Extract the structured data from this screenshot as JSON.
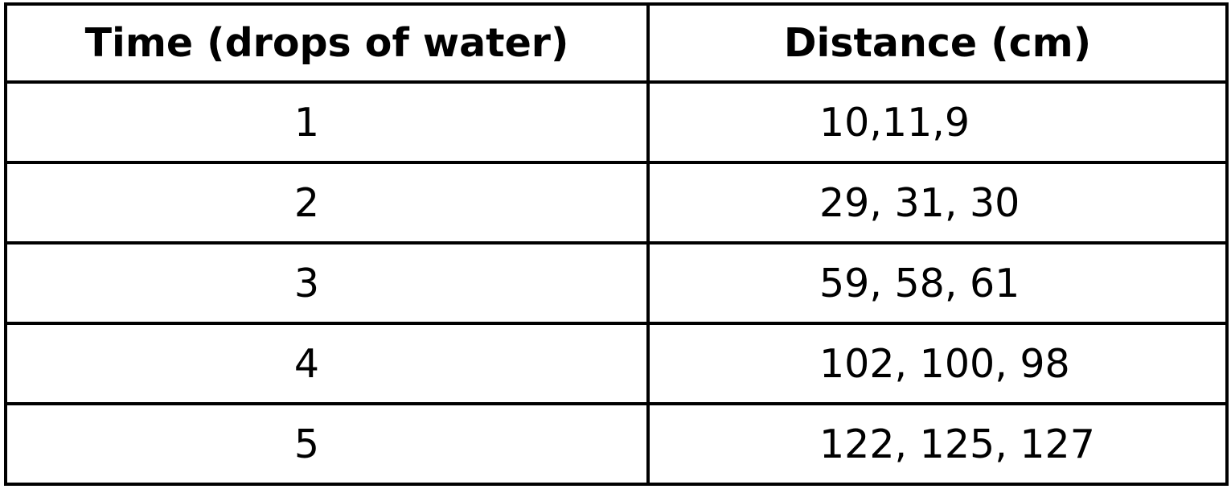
{
  "table": {
    "headers": {
      "time": "Time (drops of water)",
      "distance": "Distance (cm)"
    },
    "rows": [
      {
        "time": "1",
        "distance": "10,11,9"
      },
      {
        "time": "2",
        "distance": "29, 31, 30"
      },
      {
        "time": "3",
        "distance": "59, 58, 61"
      },
      {
        "time": "4",
        "distance": "102, 100, 98"
      },
      {
        "time": "5",
        "distance": "122, 125, 127"
      }
    ]
  }
}
